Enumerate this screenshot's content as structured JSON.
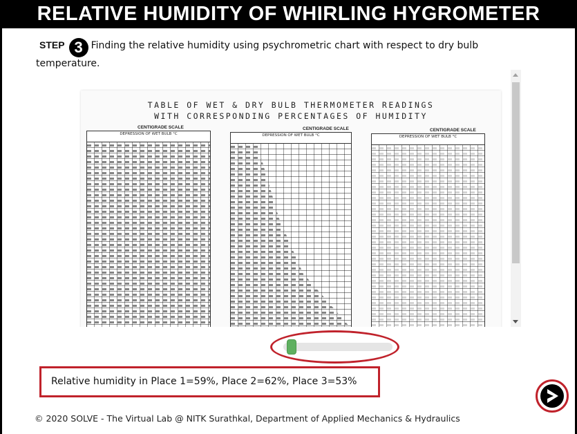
{
  "title": "RELATIVE HUMIDITY OF WHIRLING HYGROMETER",
  "step": {
    "label": "STEP",
    "number": "3",
    "text": "Finding the relative humidity using psychrometric chart with respect to dry bulb temperature."
  },
  "chart_image": {
    "heading_line1": "TABLE OF WET & DRY BULB THERMOMETER READINGS",
    "heading_line2": "WITH CORRESPONDING PERCENTAGES OF HUMIDITY",
    "scale_label": "CENTIGRADE SCALE",
    "column_header": "DEPRESSION OF WET BULB °C"
  },
  "slider": {
    "value_fraction": 0.02
  },
  "result_text": "Relative humidity in Place 1=59%, Place 2=62%, Place 3=53%",
  "footer": "© 2020 SOLVE - The Virtual Lab @ NITK Surathkal, Department of Applied Mechanics & Hydraulics",
  "colors": {
    "accent": "#c0222b",
    "title_bg": "#000000",
    "slider_thumb": "#5fb060"
  },
  "icons": {
    "next": "arrow-right-circle-icon"
  }
}
